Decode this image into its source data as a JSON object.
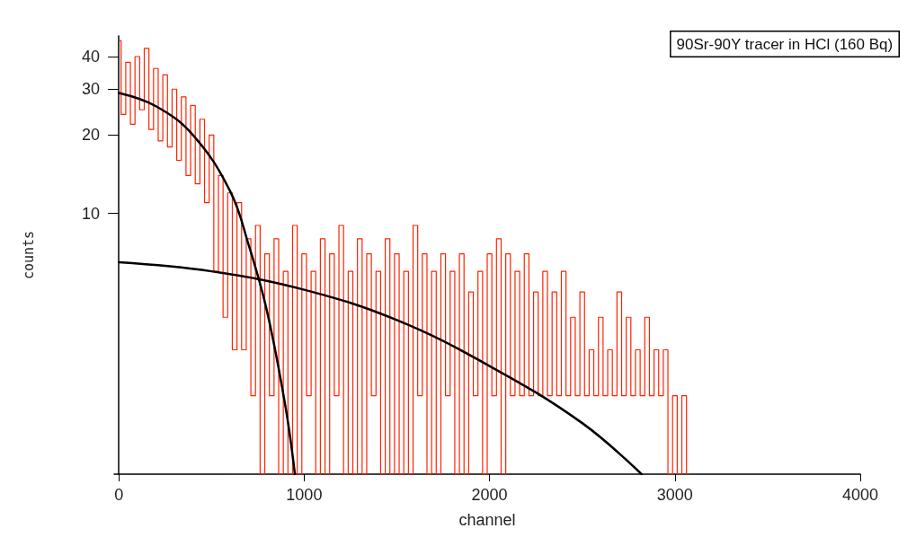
{
  "chart_data": {
    "type": "line",
    "xlabel": "channel",
    "ylabel": "counts",
    "log": "y",
    "grid": false,
    "marker": "none",
    "line_style": "solid",
    "xlim": [
      -25,
      4000
    ],
    "xticks": [
      0,
      1000,
      2000,
      3000,
      4000
    ],
    "ylim": [
      1,
      48
    ],
    "yticks": [
      10,
      20,
      30,
      40
    ],
    "annotations": [
      "90Sr-90Y tracer in HCl (160 Bq)"
    ],
    "series": [
      {
        "type": "step",
        "color": "#ff2200",
        "x": [
          0,
          25,
          50,
          75,
          100,
          125,
          150,
          175,
          200,
          225,
          250,
          275,
          300,
          325,
          350,
          375,
          400,
          425,
          450,
          475,
          500,
          525,
          550,
          575,
          600,
          625,
          650,
          675,
          700,
          725,
          750,
          775,
          800,
          825,
          850,
          875,
          900,
          925,
          950,
          975,
          1000,
          1025,
          1050,
          1075,
          1100,
          1125,
          1150,
          1175,
          1200,
          1225,
          1250,
          1275,
          1300,
          1325,
          1350,
          1375,
          1400,
          1425,
          1450,
          1475,
          1500,
          1525,
          1550,
          1575,
          1600,
          1625,
          1650,
          1675,
          1700,
          1725,
          1750,
          1775,
          1800,
          1825,
          1850,
          1875,
          1900,
          1925,
          1950,
          1975,
          2000,
          2025,
          2050,
          2075,
          2100,
          2125,
          2150,
          2175,
          2200,
          2225,
          2250,
          2275,
          2300,
          2325,
          2350,
          2375,
          2400,
          2425,
          2450,
          2475,
          2500,
          2525,
          2550,
          2575,
          2600,
          2625,
          2650,
          2675,
          2700,
          2725,
          2750,
          2775,
          2800,
          2825,
          2850,
          2875,
          2900,
          2925,
          2950,
          2975,
          3000,
          3025,
          3050,
          3075
        ],
        "values": [
          46,
          24,
          38,
          22,
          40,
          25,
          43,
          21,
          36,
          19,
          34,
          18,
          30,
          16,
          28,
          14,
          26,
          13,
          23,
          11,
          20,
          6,
          14,
          4,
          12,
          3,
          11,
          3,
          8,
          2,
          9,
          1,
          7,
          2,
          8,
          1,
          6,
          1,
          9,
          1,
          7,
          2,
          6,
          1,
          8,
          1,
          7,
          2,
          9,
          1,
          6,
          1,
          8,
          1,
          7,
          2,
          6,
          1,
          8,
          1,
          7,
          1,
          6,
          1,
          9,
          2,
          7,
          1,
          6,
          1,
          7,
          2,
          6,
          1,
          7,
          1,
          5,
          2,
          6,
          1,
          7,
          2,
          8,
          1,
          7,
          2,
          6,
          2,
          7,
          2,
          5,
          2,
          6,
          2,
          5,
          2,
          6,
          2,
          4,
          2,
          5,
          2,
          3,
          2,
          4,
          2,
          3,
          2,
          5,
          2,
          4,
          2,
          3,
          2,
          4,
          2,
          3,
          2,
          3,
          1,
          2,
          1,
          2,
          1
        ]
      },
      {
        "color": "#000000",
        "x": [
          0,
          200,
          400,
          600,
          700,
          800,
          900,
          950
        ],
        "values": [
          29,
          25.8,
          20,
          12.2,
          7.6,
          4.2,
          1.8,
          1
        ]
      },
      {
        "color": "#000000",
        "x": [
          0,
          500,
          1000,
          1500,
          2000,
          2500,
          2820
        ],
        "values": [
          6.5,
          6,
          5.1,
          3.9,
          2.6,
          1.57,
          1
        ]
      }
    ]
  }
}
